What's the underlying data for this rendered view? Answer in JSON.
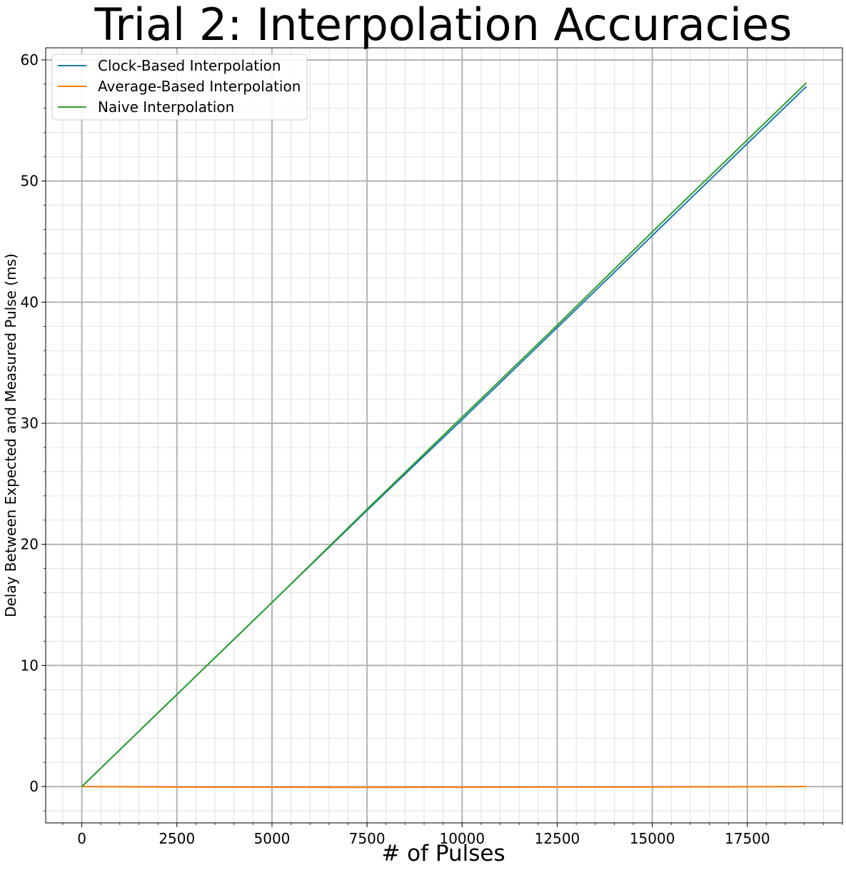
{
  "chart_data": {
    "type": "line",
    "title": "Trial 2: Interpolation Accuracies",
    "xlabel": "# of Pulses",
    "ylabel": "Delay Between Expected and Measured Pulse (ms)",
    "xlim": [
      -950,
      20000
    ],
    "ylim": [
      -3,
      61
    ],
    "x_ticks": [
      0,
      2500,
      5000,
      7500,
      10000,
      12500,
      15000,
      17500
    ],
    "x_tick_labels": [
      "0",
      "2500",
      "5000",
      "7500",
      "10000",
      "12500",
      "15000",
      "17500"
    ],
    "y_ticks": [
      0,
      10,
      20,
      30,
      40,
      50,
      60
    ],
    "y_tick_labels": [
      "0",
      "10",
      "20",
      "30",
      "40",
      "50",
      "60"
    ],
    "grid": true,
    "minor_grid": true,
    "legend_position": "top-left",
    "series": [
      {
        "name": "Clock-Based Interpolation",
        "color": "#1f77b4",
        "x": [
          0,
          2500,
          5000,
          7500,
          10000,
          12500,
          15000,
          17500,
          19050
        ],
        "y": [
          0,
          7.6,
          15.2,
          22.8,
          30.3,
          37.9,
          45.5,
          53.1,
          57.8
        ]
      },
      {
        "name": "Average-Based Interpolation",
        "color": "#ff7f0e",
        "x": [
          0,
          2500,
          5000,
          7500,
          10000,
          12500,
          15000,
          17500,
          19050
        ],
        "y": [
          0,
          -0.05,
          -0.06,
          -0.07,
          -0.06,
          -0.05,
          -0.04,
          -0.02,
          0.0
        ]
      },
      {
        "name": "Naive Interpolation",
        "color": "#2ca02c",
        "x": [
          0,
          2500,
          5000,
          7500,
          10000,
          12500,
          15000,
          17500,
          19050
        ],
        "y": [
          0,
          7.6,
          15.2,
          22.9,
          30.5,
          38.1,
          45.8,
          53.4,
          58.1
        ]
      }
    ]
  }
}
